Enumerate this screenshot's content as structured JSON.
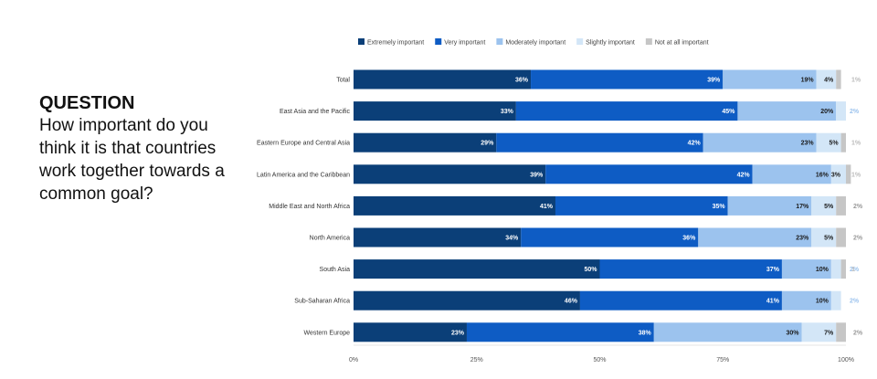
{
  "question": {
    "heading": "QUESTION",
    "text": "How important do you think it is that countries work together towards a common goal?"
  },
  "chart_data": {
    "type": "bar",
    "orientation": "horizontal",
    "stacked": true,
    "categories": [
      "Total",
      "East Asia and the Pacific",
      "Eastern Europe and Central Asia",
      "Latin America and the Caribbean",
      "Middle East and North Africa",
      "North America",
      "South Asia",
      "Sub-Saharan Africa",
      "Western Europe"
    ],
    "series": [
      {
        "name": "Extremely important",
        "color": "#0b3f78",
        "values": [
          36,
          33,
          29,
          39,
          41,
          34,
          50,
          46,
          23
        ]
      },
      {
        "name": "Very important",
        "color": "#0e5cc4",
        "values": [
          39,
          45,
          42,
          42,
          35,
          36,
          37,
          41,
          38
        ]
      },
      {
        "name": "Moderately important",
        "color": "#9cc3ee",
        "values": [
          19,
          20,
          23,
          16,
          17,
          23,
          10,
          10,
          30
        ]
      },
      {
        "name": "Slightly important",
        "color": "#d3e6f7",
        "values": [
          4,
          2,
          5,
          3,
          5,
          5,
          2,
          2,
          7
        ]
      },
      {
        "name": "Not at all important",
        "color": "#c6c6c6",
        "values": [
          1,
          0,
          1,
          1,
          2,
          2,
          1,
          0,
          2
        ]
      }
    ],
    "label_text": [
      [
        "36%",
        "39%",
        "19%",
        "4%",
        "1%"
      ],
      [
        "33%",
        "45%",
        "20%",
        "2%",
        ""
      ],
      [
        "29%",
        "42%",
        "23%",
        "5%",
        "1%"
      ],
      [
        "39%",
        "42%",
        "16%",
        "3%",
        "1%"
      ],
      [
        "41%",
        "35%",
        "17%",
        "5%",
        "2%"
      ],
      [
        "34%",
        "36%",
        "23%",
        "5%",
        "2%"
      ],
      [
        "50%",
        "37%",
        "10%",
        "2%",
        "1"
      ],
      [
        "46%",
        "41%",
        "10%",
        "2%",
        ""
      ],
      [
        "23%",
        "38%",
        "30%",
        "7%",
        "2%"
      ]
    ],
    "x_ticks": [
      "0%",
      "25%",
      "50%",
      "75%",
      "100%"
    ],
    "xlim": [
      0,
      100
    ],
    "legend_position": "top",
    "grid": false
  }
}
